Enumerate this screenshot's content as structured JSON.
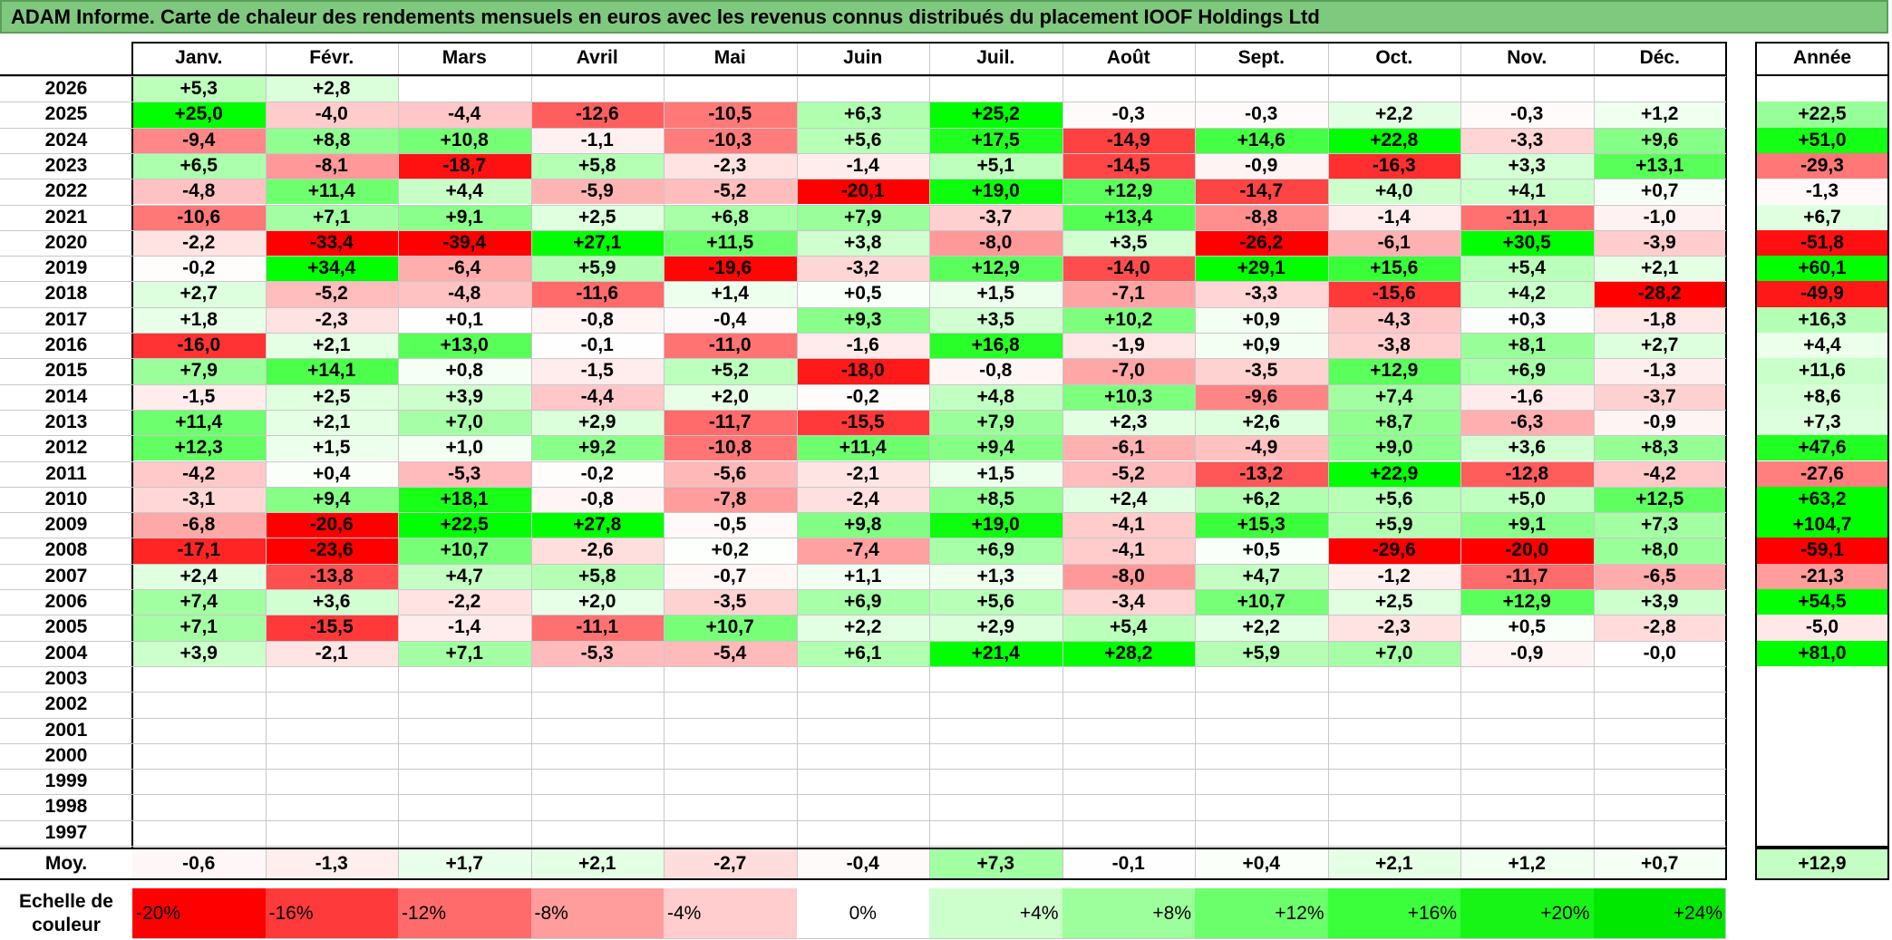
{
  "title": "ADAM Informe. Carte de chaleur des rendements mensuels en euros avec les revenus connus distribués du placement IOOF Holdings Ltd",
  "chart_data": {
    "type": "heatmap",
    "columns": [
      "Janv.",
      "Févr.",
      "Mars",
      "Avril",
      "Mai",
      "Juin",
      "Juil.",
      "Août",
      "Sept.",
      "Oct.",
      "Nov.",
      "Déc."
    ],
    "year_column": "Année",
    "rows": [
      {
        "year": "2026",
        "months": [
          "+5,3",
          "+2,8",
          "",
          "",
          "",
          "",
          "",
          "",
          "",
          "",
          "",
          ""
        ],
        "annual": ""
      },
      {
        "year": "2025",
        "months": [
          "+25,0",
          "-4,0",
          "-4,4",
          "-12,6",
          "-10,5",
          "+6,3",
          "+25,2",
          "-0,3",
          "-0,3",
          "+2,2",
          "-0,3",
          "+1,2"
        ],
        "annual": "+22,5"
      },
      {
        "year": "2024",
        "months": [
          "-9,4",
          "+8,8",
          "+10,8",
          "-1,1",
          "-10,3",
          "+5,6",
          "+17,5",
          "-14,9",
          "+14,6",
          "+22,8",
          "-3,3",
          "+9,6"
        ],
        "annual": "+51,0"
      },
      {
        "year": "2023",
        "months": [
          "+6,5",
          "-8,1",
          "-18,7",
          "+5,8",
          "-2,3",
          "-1,4",
          "+5,1",
          "-14,5",
          "-0,9",
          "-16,3",
          "+3,3",
          "+13,1"
        ],
        "annual": "-29,3"
      },
      {
        "year": "2022",
        "months": [
          "-4,8",
          "+11,4",
          "+4,4",
          "-5,9",
          "-5,2",
          "-20,1",
          "+19,0",
          "+12,9",
          "-14,7",
          "+4,0",
          "+4,1",
          "+0,7"
        ],
        "annual": "-1,3"
      },
      {
        "year": "2021",
        "months": [
          "-10,6",
          "+7,1",
          "+9,1",
          "+2,5",
          "+6,8",
          "+7,9",
          "-3,7",
          "+13,4",
          "-8,8",
          "-1,4",
          "-11,1",
          "-1,0"
        ],
        "annual": "+6,7"
      },
      {
        "year": "2020",
        "months": [
          "-2,2",
          "-33,4",
          "-39,4",
          "+27,1",
          "+11,5",
          "+3,8",
          "-8,0",
          "+3,5",
          "-26,2",
          "-6,1",
          "+30,5",
          "-3,9"
        ],
        "annual": "-51,8"
      },
      {
        "year": "2019",
        "months": [
          "-0,2",
          "+34,4",
          "-6,4",
          "+5,9",
          "-19,6",
          "-3,2",
          "+12,9",
          "-14,0",
          "+29,1",
          "+15,6",
          "+5,4",
          "+2,1"
        ],
        "annual": "+60,1"
      },
      {
        "year": "2018",
        "months": [
          "+2,7",
          "-5,2",
          "-4,8",
          "-11,6",
          "+1,4",
          "+0,5",
          "+1,5",
          "-7,1",
          "-3,3",
          "-15,6",
          "+4,2",
          "-28,2"
        ],
        "annual": "-49,9"
      },
      {
        "year": "2017",
        "months": [
          "+1,8",
          "-2,3",
          "+0,1",
          "-0,8",
          "-0,4",
          "+9,3",
          "+3,5",
          "+10,2",
          "+0,9",
          "-4,3",
          "+0,3",
          "-1,8"
        ],
        "annual": "+16,3"
      },
      {
        "year": "2016",
        "months": [
          "-16,0",
          "+2,1",
          "+13,0",
          "-0,1",
          "-11,0",
          "-1,6",
          "+16,8",
          "-1,9",
          "+0,9",
          "-3,8",
          "+8,1",
          "+2,7"
        ],
        "annual": "+4,4"
      },
      {
        "year": "2015",
        "months": [
          "+7,9",
          "+14,1",
          "+0,8",
          "-1,5",
          "+5,2",
          "-18,0",
          "-0,8",
          "-7,0",
          "-3,5",
          "+12,9",
          "+6,9",
          "-1,3"
        ],
        "annual": "+11,6"
      },
      {
        "year": "2014",
        "months": [
          "-1,5",
          "+2,5",
          "+3,9",
          "-4,4",
          "+2,0",
          "-0,2",
          "+4,8",
          "+10,3",
          "-9,6",
          "+7,4",
          "-1,6",
          "-3,7"
        ],
        "annual": "+8,6"
      },
      {
        "year": "2013",
        "months": [
          "+11,4",
          "+2,1",
          "+7,0",
          "+2,9",
          "-11,7",
          "-15,5",
          "+7,9",
          "+2,3",
          "+2,6",
          "+8,7",
          "-6,3",
          "-0,9"
        ],
        "annual": "+7,3"
      },
      {
        "year": "2012",
        "months": [
          "+12,3",
          "+1,5",
          "+1,0",
          "+9,2",
          "-10,8",
          "+11,4",
          "+9,4",
          "-6,1",
          "-4,9",
          "+9,0",
          "+3,6",
          "+8,3"
        ],
        "annual": "+47,6"
      },
      {
        "year": "2011",
        "months": [
          "-4,2",
          "+0,4",
          "-5,3",
          "-0,2",
          "-5,6",
          "-2,1",
          "+1,5",
          "-5,2",
          "-13,2",
          "+22,9",
          "-12,8",
          "-4,2"
        ],
        "annual": "-27,6"
      },
      {
        "year": "2010",
        "months": [
          "-3,1",
          "+9,4",
          "+18,1",
          "-0,8",
          "-7,8",
          "-2,4",
          "+8,5",
          "+2,4",
          "+6,2",
          "+5,6",
          "+5,0",
          "+12,5"
        ],
        "annual": "+63,2"
      },
      {
        "year": "2009",
        "months": [
          "-6,8",
          "-20,6",
          "+22,5",
          "+27,8",
          "-0,5",
          "+9,8",
          "+19,0",
          "-4,1",
          "+15,3",
          "+5,9",
          "+9,1",
          "+7,3"
        ],
        "annual": "+104,7"
      },
      {
        "year": "2008",
        "months": [
          "-17,1",
          "-23,6",
          "+10,7",
          "-2,6",
          "+0,2",
          "-7,4",
          "+6,9",
          "-4,1",
          "+0,5",
          "-29,6",
          "-20,0",
          "+8,0"
        ],
        "annual": "-59,1"
      },
      {
        "year": "2007",
        "months": [
          "+2,4",
          "-13,8",
          "+4,7",
          "+5,8",
          "-0,7",
          "+1,1",
          "+1,3",
          "-8,0",
          "+4,7",
          "-1,2",
          "-11,7",
          "-6,5"
        ],
        "annual": "-21,3"
      },
      {
        "year": "2006",
        "months": [
          "+7,4",
          "+3,6",
          "-2,2",
          "+2,0",
          "-3,5",
          "+6,9",
          "+5,6",
          "-3,4",
          "+10,7",
          "+2,5",
          "+12,9",
          "+3,9"
        ],
        "annual": "+54,5"
      },
      {
        "year": "2005",
        "months": [
          "+7,1",
          "-15,5",
          "-1,4",
          "-11,1",
          "+10,7",
          "+2,2",
          "+2,9",
          "+5,4",
          "+2,2",
          "-2,3",
          "+0,5",
          "-2,8"
        ],
        "annual": "-5,0"
      },
      {
        "year": "2004",
        "months": [
          "+3,9",
          "-2,1",
          "+7,1",
          "-5,3",
          "-5,4",
          "+6,1",
          "+21,4",
          "+28,2",
          "+5,9",
          "+7,0",
          "-0,9",
          "-0,0"
        ],
        "annual": "+81,0"
      },
      {
        "year": "2003",
        "months": [
          "",
          "",
          "",
          "",
          "",
          "",
          "",
          "",
          "",
          "",
          "",
          ""
        ],
        "annual": ""
      },
      {
        "year": "2002",
        "months": [
          "",
          "",
          "",
          "",
          "",
          "",
          "",
          "",
          "",
          "",
          "",
          ""
        ],
        "annual": ""
      },
      {
        "year": "2001",
        "months": [
          "",
          "",
          "",
          "",
          "",
          "",
          "",
          "",
          "",
          "",
          "",
          ""
        ],
        "annual": ""
      },
      {
        "year": "2000",
        "months": [
          "",
          "",
          "",
          "",
          "",
          "",
          "",
          "",
          "",
          "",
          "",
          ""
        ],
        "annual": ""
      },
      {
        "year": "1999",
        "months": [
          "",
          "",
          "",
          "",
          "",
          "",
          "",
          "",
          "",
          "",
          "",
          ""
        ],
        "annual": ""
      },
      {
        "year": "1998",
        "months": [
          "",
          "",
          "",
          "",
          "",
          "",
          "",
          "",
          "",
          "",
          "",
          ""
        ],
        "annual": ""
      },
      {
        "year": "1997",
        "months": [
          "",
          "",
          "",
          "",
          "",
          "",
          "",
          "",
          "",
          "",
          "",
          ""
        ],
        "annual": ""
      }
    ],
    "average": {
      "label": "Moy.",
      "months": [
        "-0,6",
        "-1,3",
        "+1,7",
        "+2,1",
        "-2,7",
        "-0,4",
        "+7,3",
        "-0,1",
        "+0,4",
        "+2,1",
        "+1,2",
        "+0,7"
      ],
      "annual": "+12,9"
    },
    "scale": {
      "label_line1": "Echelle de",
      "label_line2": "couleur",
      "items": [
        "-20%",
        "-16%",
        "-12%",
        "-8%",
        "-4%",
        "0%",
        "+4%",
        "+8%",
        "+12%",
        "+16%",
        "+20%",
        "+24%"
      ],
      "colors": [
        "#ff0000",
        "#ff3a3a",
        "#ff6b6b",
        "#ff9c9c",
        "#ffcdcd",
        "#ffffff",
        "#cdffcd",
        "#9cff9c",
        "#6bff6b",
        "#3aff3a",
        "#16f516",
        "#00e800"
      ]
    },
    "colors": {
      "negative": "#ff0000",
      "neutral": "#ffffff",
      "positive": "#00ff00"
    }
  }
}
